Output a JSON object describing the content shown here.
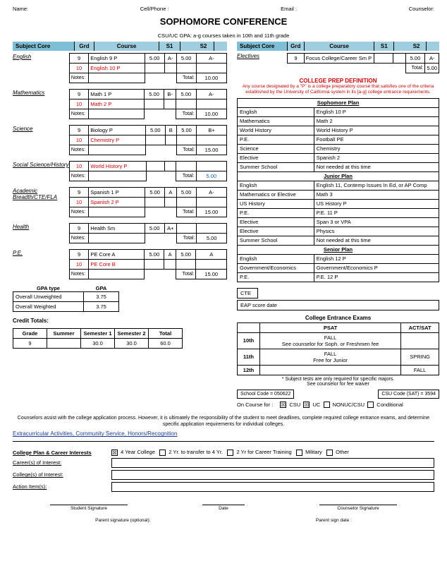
{
  "header": {
    "name": "Name:",
    "cell": "Cell/Phone :",
    "email": "Email :",
    "counselor": "Counselor:"
  },
  "title": "SOPHOMORE CONFERENCE",
  "subhead": "CSU/UC GPA: a-g courses taken in 10th and 11th grade",
  "colhdr": {
    "core": "Subject Core",
    "grd": "Grd",
    "course": "Course",
    "s1": "S1",
    "s2": "S2"
  },
  "subjects": [
    {
      "label": "English",
      "rows": [
        {
          "grd": "9",
          "course": "English 9 P",
          "s1": "5.00",
          "g1": "A-",
          "s2": "5.00",
          "g2": "A-",
          "red": false
        },
        {
          "grd": "10",
          "course": "English 10 P",
          "s1": "",
          "g1": "",
          "s2": "",
          "g2": "",
          "red": true
        }
      ],
      "total": "10.00"
    },
    {
      "label": "Mathematics",
      "rows": [
        {
          "grd": "9",
          "course": "Math 1 P",
          "s1": "5.00",
          "g1": "B-",
          "s2": "5.00",
          "g2": "A-",
          "red": false
        },
        {
          "grd": "10",
          "course": "Math 2 P",
          "s1": "",
          "g1": "",
          "s2": "",
          "g2": "",
          "red": true
        }
      ],
      "total": "10.00"
    },
    {
      "label": "Science",
      "rows": [
        {
          "grd": "9",
          "course": "Biology P",
          "s1": "5.00",
          "g1": "B",
          "s2": "5.00",
          "g2": "B+",
          "red": false
        },
        {
          "grd": "10",
          "course": "Chemistry P",
          "s1": "",
          "g1": "",
          "s2": "",
          "g2": "",
          "red": true
        }
      ],
      "total": "15.00"
    },
    {
      "label": "Social Science/History",
      "rows": [
        {
          "grd": "10",
          "course": "World History P",
          "s1": "",
          "g1": "",
          "s2": "",
          "g2": "",
          "red": true
        }
      ],
      "total": "5.00",
      "totalColor": "#0066cc"
    },
    {
      "label": "Academic Breadth/CTE/FLA",
      "rows": [
        {
          "grd": "9",
          "course": "Spanish 1 P",
          "s1": "5.00",
          "g1": "A",
          "s2": "5.00",
          "g2": "A-",
          "red": false
        },
        {
          "grd": "10",
          "course": "Spanish 2 P",
          "s1": "",
          "g1": "",
          "s2": "",
          "g2": "",
          "red": true
        }
      ],
      "total": "15.00"
    },
    {
      "label": "Health",
      "rows": [
        {
          "grd": "9",
          "course": "Health Sm",
          "s1": "5.00",
          "g1": "A+",
          "s2": "",
          "g2": "",
          "red": false
        }
      ],
      "total": "5.00"
    },
    {
      "label": "P.E.",
      "rows": [
        {
          "grd": "9",
          "course": "PE Core A",
          "s1": "5.00",
          "g1": "A",
          "s2": "5.00",
          "g2": "A",
          "red": false
        },
        {
          "grd": "10",
          "course": "PE Core B",
          "s1": "",
          "g1": "",
          "s2": "",
          "g2": "",
          "red": true
        }
      ],
      "total": "15.00"
    }
  ],
  "notesLbl": "Notes:",
  "totalLbl": "Total:",
  "gpa": {
    "typeHdr": "GPA type",
    "valHdr": "GPA",
    "rows": [
      {
        "l": "Overall Unweighted",
        "v": "3.75"
      },
      {
        "l": "Overall Weighted",
        "v": "3.75"
      }
    ]
  },
  "credit": {
    "title": "Credit Totals:",
    "cols": [
      "Grade",
      "Summer",
      "Semester 1",
      "Semester 2",
      "Total"
    ],
    "row": [
      "9",
      "",
      "30.0",
      "30.0",
      "60.0"
    ]
  },
  "electives": {
    "label": "Electives",
    "rows": [
      {
        "grd": "9",
        "course": "Focus College/Career Sm P",
        "s1": "",
        "g1": "",
        "s2": "5.00",
        "g2": "A-"
      }
    ],
    "total": "5.00"
  },
  "prep": {
    "title": "COLLEGE PREP DEFINITION",
    "sub": "Any course designated by a \"P\" is a college preparatory course that satisfies one of the criteria established by the University of California system in its [a-g] college entrance requirements."
  },
  "plans": [
    {
      "hdr": "Sophomore Plan",
      "rows": [
        [
          "English",
          "English 10 P"
        ],
        [
          "Mathematics",
          "Math 2"
        ],
        [
          "World History",
          "World History P"
        ],
        [
          "P.E.",
          "Football PE"
        ],
        [
          "Science",
          "Chemistry"
        ],
        [
          "Elective",
          "Spanish 2"
        ],
        [
          "Summer School",
          "Not needed at this time"
        ]
      ]
    },
    {
      "hdr": "Junior Plan",
      "rows": [
        [
          "English",
          "English 11, Contemp Issues In Ed, or AP Comp"
        ],
        [
          "Mathematics or Elective",
          "Math 3"
        ],
        [
          "US History",
          "US History P"
        ],
        [
          "P.E.",
          "P.E. 11 P"
        ],
        [
          "Elective",
          "Span 3 or VPA"
        ],
        [
          "Elective",
          "Physics"
        ],
        [
          "Summer School",
          "Not needed at this time"
        ]
      ]
    },
    {
      "hdr": "Senior Plan",
      "rows": [
        [
          "English",
          "English 12 P"
        ],
        [
          "Government/Economics",
          "Government/Economics P"
        ],
        [
          "P.E.",
          "P.E. 12 P"
        ]
      ]
    }
  ],
  "cte": "CTE",
  "eap": "EAP score date",
  "cee": {
    "title": "College Entrance Exams",
    "cols": [
      "",
      "PSAT",
      "ACT/SAT"
    ],
    "rows": [
      {
        "g": "10th",
        "c1": "FALL\nSee counselor for Soph. or Freshmen fee",
        "c2": ""
      },
      {
        "g": "11th",
        "c1": "FALL\nFree for Junior",
        "c2": "SPRING"
      },
      {
        "g": "12th",
        "c1": "",
        "c2": "FALL"
      }
    ],
    "note": "* Subject tests are only required for specific majors.\nSee counselor for fee waiver"
  },
  "codes": {
    "school": "School Code = 050622",
    "csu": "CSU Code (SAT) = 3594"
  },
  "oncourse": {
    "lbl": "On Course for :",
    "opts": [
      "CSU",
      "UC",
      "NONUC/CSU",
      "Conditional"
    ],
    "checked": [
      true,
      true,
      false,
      false
    ]
  },
  "bottomNote": "Counselors assist with the college application process. However, it is ultimately the responsibility of the student to meet deadlines, complete required college entrance exams, and determine specific application requirements for individual colleges.",
  "extra": "Extracurricular Activities, Community Service, Honors/Recognition",
  "collegePlan": {
    "title": "College Plan & Career Interests",
    "opts": [
      "4 Year College",
      "2 Yr. to transfer to 4 Yr.",
      "2 Yr for Career Training",
      "Military",
      "Other"
    ],
    "checked": [
      true,
      false,
      false,
      false,
      false
    ]
  },
  "fields": [
    "Career(s) of Interest:",
    "College(s) of Interest:",
    "Action Item(s):"
  ],
  "sigs": {
    "student": "Student Signature",
    "date": "Date",
    "counselor": "Counselor Signature",
    "parent": "Parent signature (optional):",
    "pdate": "Parent sign date :"
  }
}
